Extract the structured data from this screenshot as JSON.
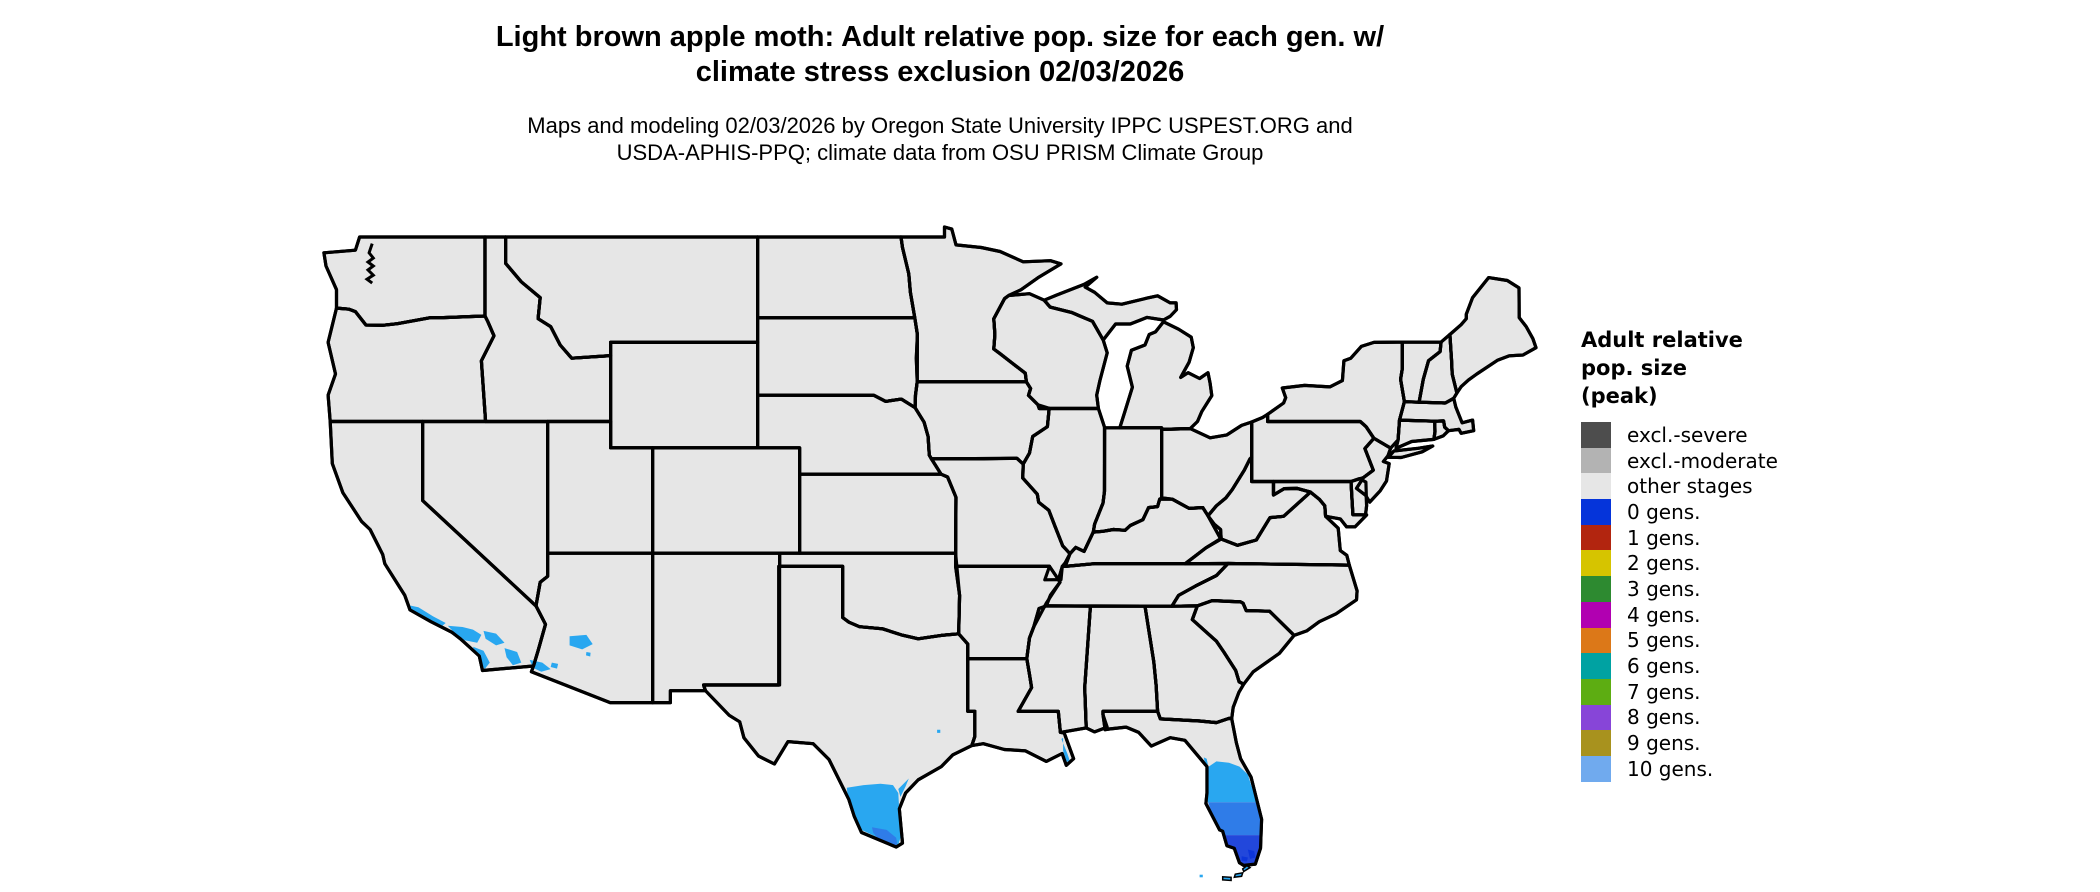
{
  "title": {
    "line1": "Light brown apple moth: Adult relative pop. size for each gen. w/",
    "line2": "climate stress exclusion 02/03/2026"
  },
  "subtitle": {
    "line1": "Maps and modeling 02/03/2026 by Oregon State University IPPC USPEST.ORG and",
    "line2": "USDA-APHIS-PPQ; climate data from OSU PRISM Climate Group"
  },
  "legend": {
    "title_lines": [
      "Adult relative",
      "pop. size",
      "(peak)"
    ],
    "items": [
      {
        "label": "excl.-severe",
        "color": "#4d4d4d"
      },
      {
        "label": "excl.-moderate",
        "color": "#b3b3b3"
      },
      {
        "label": "other stages",
        "color": "#e6e6e6"
      },
      {
        "label": "0 gens.",
        "color": "#0534da"
      },
      {
        "label": "1 gens.",
        "color": "#b2250f"
      },
      {
        "label": "2 gens.",
        "color": "#d6c400"
      },
      {
        "label": "3 gens.",
        "color": "#2d8a30"
      },
      {
        "label": "4 gens.",
        "color": "#b100b1"
      },
      {
        "label": "5 gens.",
        "color": "#dc7818"
      },
      {
        "label": "6 gens.",
        "color": "#00a2a2"
      },
      {
        "label": "7 gens.",
        "color": "#5dad12"
      },
      {
        "label": "8 gens.",
        "color": "#8745d8"
      },
      {
        "label": "9 gens.",
        "color": "#a8921e"
      },
      {
        "label": "10 gens.",
        "color": "#70aaee"
      }
    ]
  },
  "map": {
    "land_fill": "#e6e6e6",
    "border_color": "#000000",
    "background": "#ffffff",
    "highlight_colors": {
      "cyan": "#29a7f0",
      "medium_blue": "#2f7ce8",
      "deep_blue": "#2247db",
      "darkest_blue": "#0d35d9"
    },
    "highlighted_regions": [
      "southern California coast",
      "southwestern Arizona",
      "southern Texas",
      "Mississippi River delta",
      "central and southern Florida",
      "Florida Keys"
    ]
  }
}
